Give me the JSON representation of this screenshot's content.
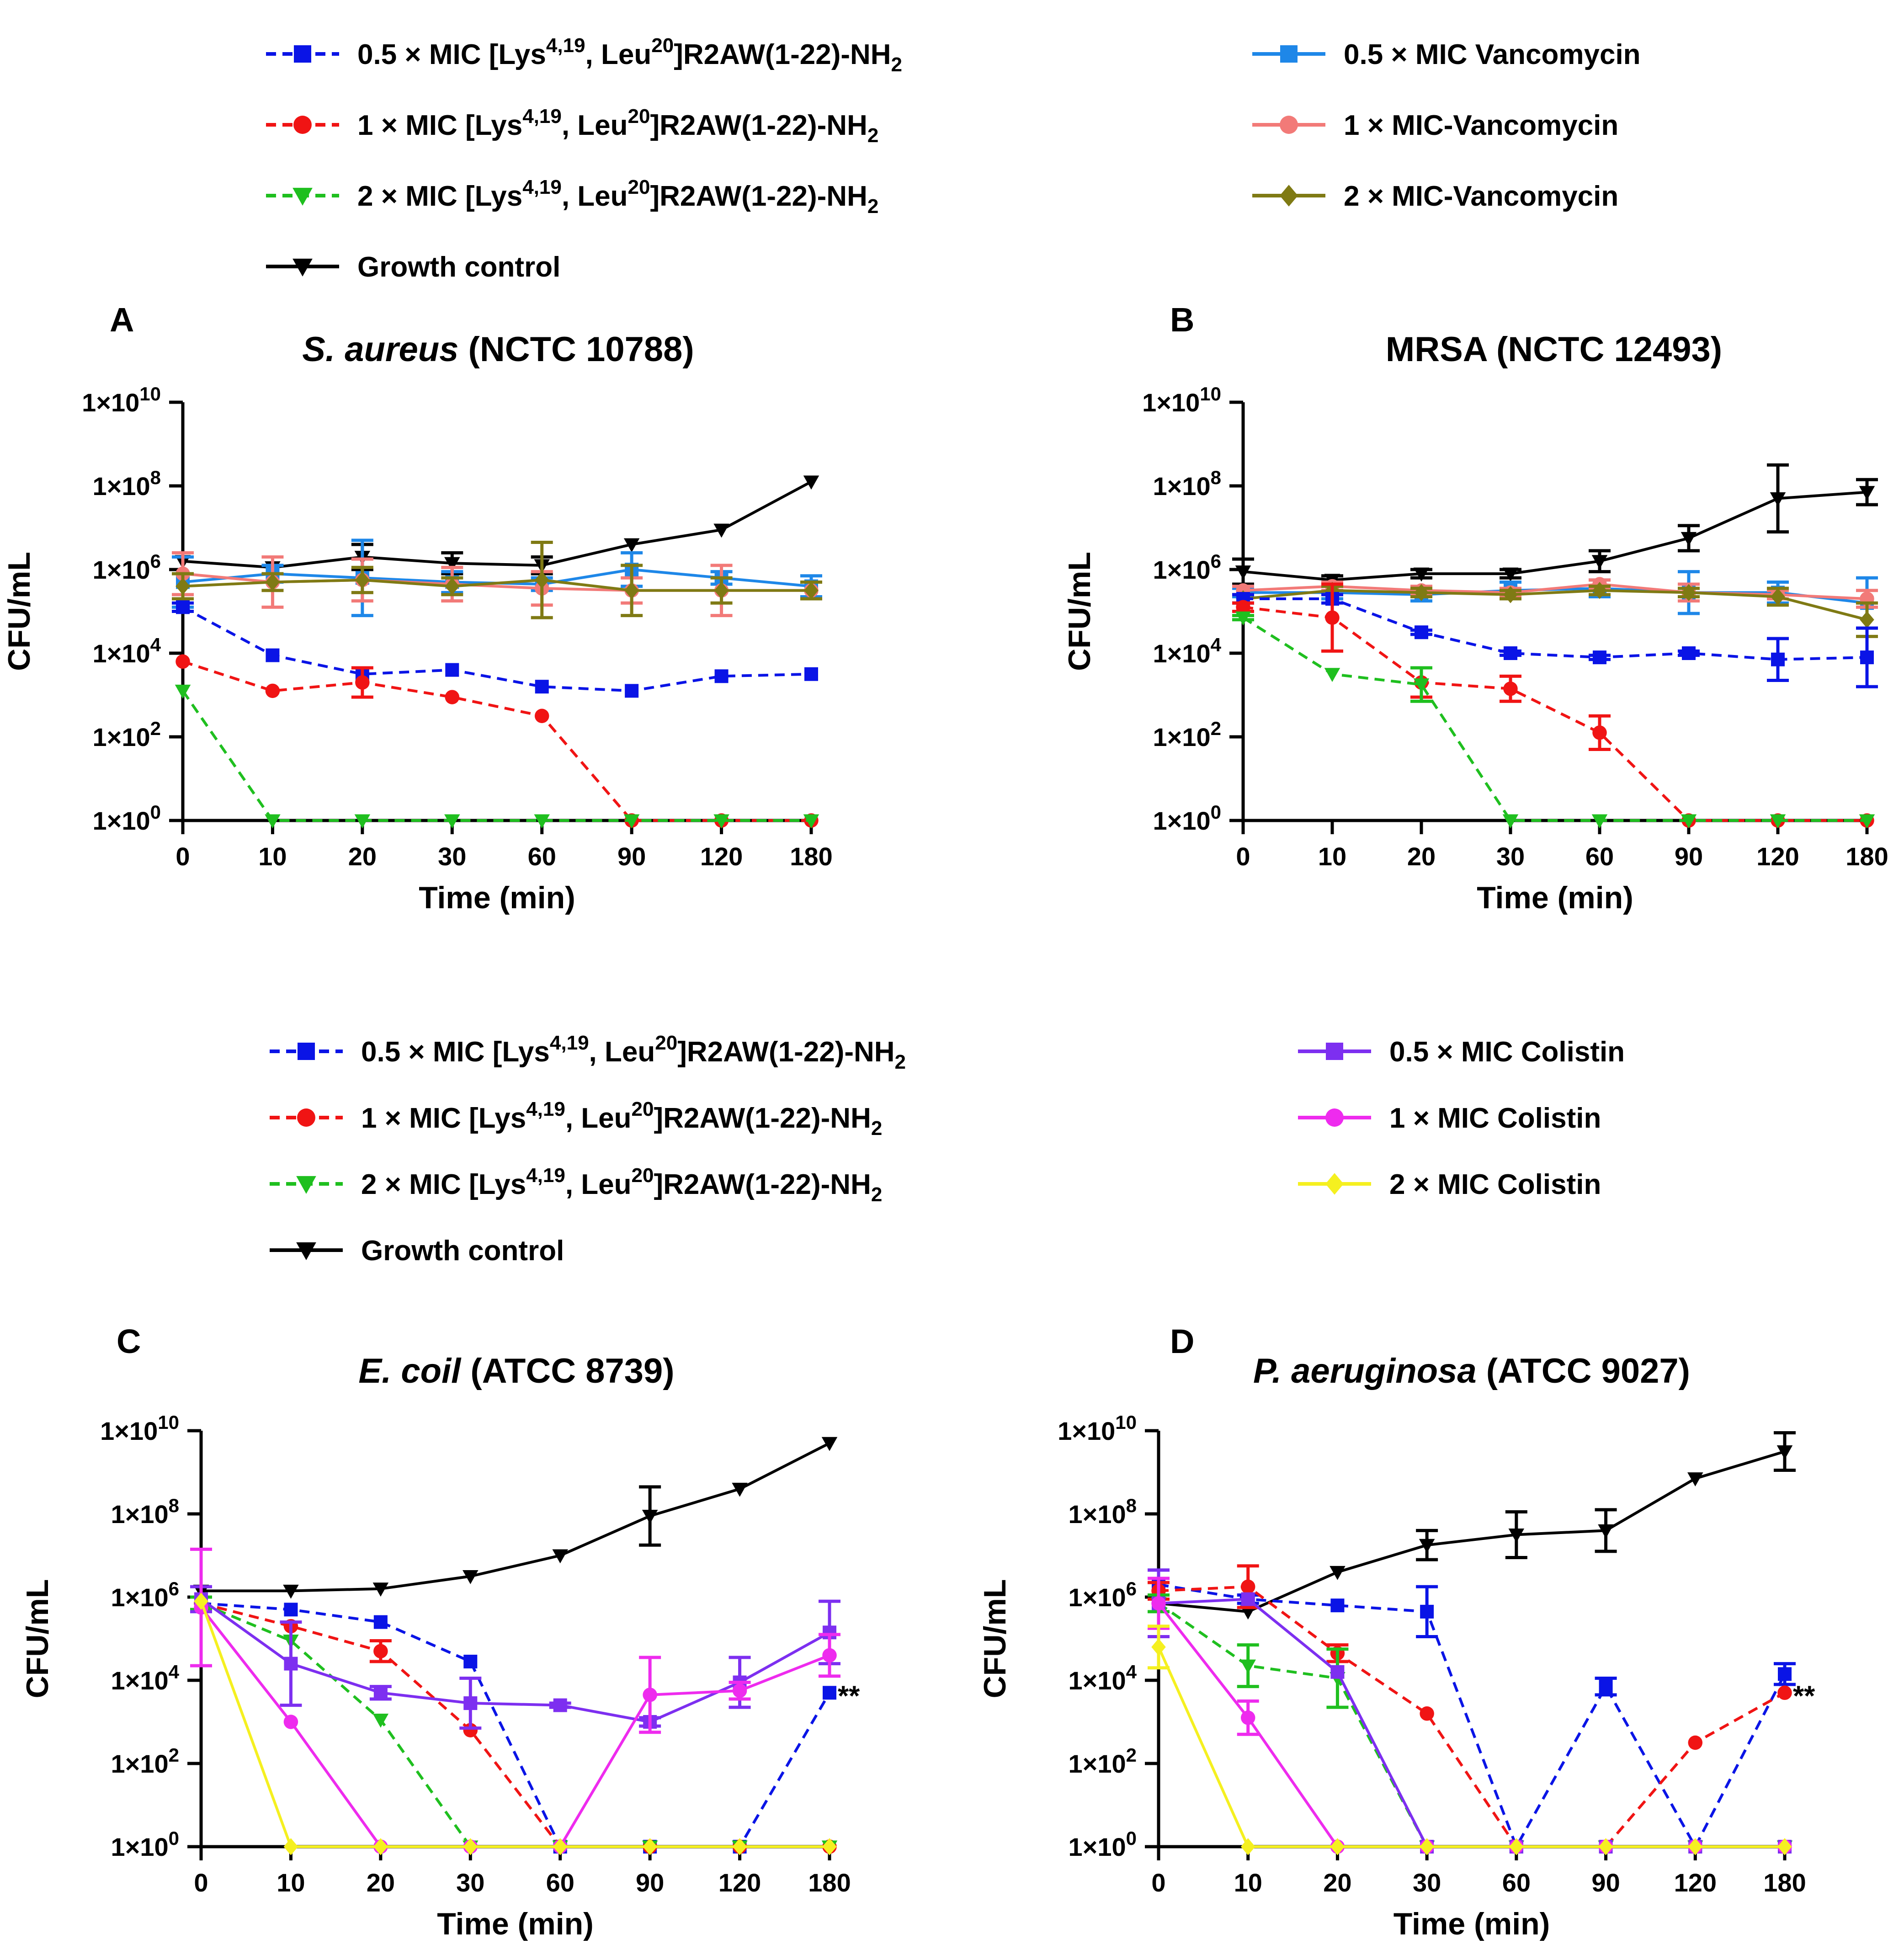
{
  "figure": {
    "legend_top": {
      "left": [
        {
          "series": "pep05",
          "pre": "0.5 × MIC [Lys",
          "sup1": "4,19",
          "mid": ", Leu",
          "sup2": "20",
          "post": "]R2AW(1-22)-NH",
          "sub": "2"
        },
        {
          "series": "pep1",
          "pre": "1 × MIC [Lys",
          "sup1": "4,19",
          "mid": ", Leu",
          "sup2": "20",
          "post": "]R2AW(1-22)-NH",
          "sub": "2"
        },
        {
          "series": "pep2",
          "pre": "2 × MIC [Lys",
          "sup1": "4,19",
          "mid": ", Leu",
          "sup2": "20",
          "post": "]R2AW(1-22)-NH",
          "sub": "2"
        },
        {
          "series": "gc",
          "pre": "Growth control"
        }
      ],
      "right": [
        {
          "series": "van05",
          "pre": "0.5 × MIC Vancomycin"
        },
        {
          "series": "van1",
          "pre": "1 × MIC-Vancomycin"
        },
        {
          "series": "van2",
          "pre": "2 × MIC-Vancomycin"
        }
      ]
    },
    "legend_bottom": {
      "left": [
        {
          "series": "pep05",
          "pre": "0.5 × MIC [Lys",
          "sup1": "4,19",
          "mid": ", Leu",
          "sup2": "20",
          "post": "]R2AW(1-22)-NH",
          "sub": "2"
        },
        {
          "series": "pep1",
          "pre": "1 × MIC [Lys",
          "sup1": "4,19",
          "mid": ", Leu",
          "sup2": "20",
          "post": "]R2AW(1-22)-NH",
          "sub": "2"
        },
        {
          "series": "pep2",
          "pre": "2 × MIC [Lys",
          "sup1": "4,19",
          "mid": ", Leu",
          "sup2": "20",
          "post": "]R2AW(1-22)-NH",
          "sub": "2"
        },
        {
          "series": "gc",
          "pre": "Growth control"
        }
      ],
      "right": [
        {
          "series": "col05",
          "pre": "0.5 × MIC Colistin"
        },
        {
          "series": "col1",
          "pre": "1 × MIC Colistin"
        },
        {
          "series": "col2",
          "pre": "2 × MIC Colistin"
        }
      ]
    },
    "styles": {
      "pep05": {
        "color": "#0a14e6",
        "marker": "square",
        "dashed": true
      },
      "pep1": {
        "color": "#f01414",
        "marker": "circle",
        "dashed": true
      },
      "pep2": {
        "color": "#1fbf1f",
        "marker": "triangle-down",
        "dashed": true
      },
      "gc": {
        "color": "#000000",
        "marker": "triangle-down",
        "dashed": false
      },
      "van05": {
        "color": "#1e87e8",
        "marker": "square",
        "dashed": false
      },
      "van1": {
        "color": "#f27a78",
        "marker": "circle",
        "dashed": false
      },
      "van2": {
        "color": "#7f7a14",
        "marker": "diamond",
        "dashed": false
      },
      "col05": {
        "color": "#7d2ff0",
        "marker": "square",
        "dashed": false
      },
      "col1": {
        "color": "#ee2bee",
        "marker": "circle",
        "dashed": false
      },
      "col2": {
        "color": "#f5f020",
        "marker": "diamond",
        "dashed": false
      }
    }
  },
  "chart_data": [
    {
      "panel": "A",
      "type": "line",
      "title_italic": "S. aureus",
      "title_rest": " (NCTC 10788)",
      "xlabel": "Time (min)",
      "ylabel": "CFU/mL",
      "y_scale": "log10",
      "ylim_log10": [
        0,
        10
      ],
      "y_ticks": [
        0,
        2,
        4,
        6,
        8,
        10
      ],
      "categories": [
        "0",
        "10",
        "20",
        "30",
        "60",
        "90",
        "120",
        "180"
      ],
      "annotation": "",
      "series": [
        {
          "key": "gc",
          "name": "Growth control",
          "log10": [
            6.2,
            6.05,
            6.3,
            6.15,
            6.1,
            6.6,
            6.95,
            8.1
          ],
          "err": [
            0,
            0,
            0.3,
            0.25,
            0.2,
            0,
            0,
            0
          ]
        },
        {
          "key": "van05",
          "name": "0.5 × MIC Vancomycin",
          "log10": [
            5.7,
            5.9,
            5.8,
            5.7,
            5.65,
            6.0,
            5.8,
            5.6
          ],
          "err": [
            0.6,
            0.2,
            0.9,
            0.25,
            0.15,
            0.4,
            0.15,
            0.25
          ]
        },
        {
          "key": "van1",
          "name": "1 × MIC-Vancomycin",
          "log10": [
            5.9,
            5.7,
            5.75,
            5.65,
            5.55,
            5.5,
            5.5,
            5.5
          ],
          "err": [
            0.5,
            0.6,
            0.5,
            0.4,
            0.4,
            0.3,
            0.6,
            0.2
          ]
        },
        {
          "key": "van2",
          "name": "2 × MIC-Vancomycin",
          "log10": [
            5.6,
            5.7,
            5.75,
            5.6,
            5.75,
            5.5,
            5.5,
            5.5
          ],
          "err": [
            0.3,
            0.2,
            0.3,
            0.2,
            0.9,
            0.6,
            0.3,
            0.2
          ]
        },
        {
          "key": "pep05",
          "name": "0.5 × MIC [Lys4,19, Leu20]R2AW(1-22)-NH2",
          "log10": [
            5.1,
            3.95,
            3.5,
            3.6,
            3.2,
            3.1,
            3.45,
            3.5
          ],
          "err": [
            0.1,
            0,
            0,
            0,
            0,
            0,
            0,
            0
          ]
        },
        {
          "key": "pep1",
          "name": "1 × MIC [Lys4,19, Leu20]R2AW(1-22)-NH2",
          "log10": [
            3.8,
            3.1,
            3.3,
            2.95,
            2.5,
            0,
            0,
            0
          ],
          "err": [
            0,
            0,
            0.35,
            0,
            0,
            0,
            0,
            0
          ]
        },
        {
          "key": "pep2",
          "name": "2 × MIC [Lys4,19, Leu20]R2AW(1-22)-NH2",
          "log10": [
            3.1,
            0,
            0,
            0,
            0,
            0,
            0,
            0
          ],
          "err": [
            0,
            0,
            0,
            0,
            0,
            0,
            0,
            0
          ]
        }
      ]
    },
    {
      "panel": "B",
      "type": "line",
      "title_italic": "",
      "title_rest": "MRSA (NCTC 12493)",
      "xlabel": "Time (min)",
      "ylabel": "CFU/mL",
      "y_scale": "log10",
      "ylim_log10": [
        0,
        10
      ],
      "y_ticks": [
        0,
        2,
        4,
        6,
        8,
        10
      ],
      "categories": [
        "0",
        "10",
        "20",
        "30",
        "60",
        "90",
        "120",
        "180"
      ],
      "annotation": "",
      "series": [
        {
          "key": "gc",
          "name": "Growth control",
          "log10": [
            5.95,
            5.75,
            5.9,
            5.9,
            6.2,
            6.75,
            7.7,
            7.85
          ],
          "err": [
            0.3,
            0.1,
            0.1,
            0.1,
            0.25,
            0.3,
            0.8,
            0.3
          ]
        },
        {
          "key": "van05",
          "name": "0.5 × MIC Vancomycin",
          "log10": [
            5.45,
            5.45,
            5.4,
            5.5,
            5.55,
            5.45,
            5.45,
            5.2
          ],
          "err": [
            0.1,
            0.15,
            0.15,
            0.2,
            0.2,
            0.5,
            0.25,
            0.6
          ]
        },
        {
          "key": "van1",
          "name": "1 × MIC-Vancomycin",
          "log10": [
            5.5,
            5.6,
            5.5,
            5.45,
            5.65,
            5.45,
            5.4,
            5.3
          ],
          "err": [
            0.1,
            0.1,
            0.1,
            0.1,
            0.1,
            0.2,
            0.1,
            0.2
          ]
        },
        {
          "key": "van2",
          "name": "2 × MIC-Vancomycin",
          "log10": [
            5.3,
            5.5,
            5.45,
            5.4,
            5.5,
            5.45,
            5.35,
            4.8
          ],
          "err": [
            0.1,
            0.1,
            0.1,
            0.1,
            0.1,
            0.1,
            0.2,
            0.4
          ]
        },
        {
          "key": "pep05",
          "name": "0.5 × MIC [Lys4,19, Leu20]R2AW(1-22)-NH2",
          "log10": [
            5.3,
            5.3,
            4.5,
            4.0,
            3.9,
            4.0,
            3.85,
            3.9
          ],
          "err": [
            0.1,
            0.1,
            0.05,
            0.05,
            0.05,
            0.05,
            0.5,
            0.7
          ]
        },
        {
          "key": "pep1",
          "name": "1 × MIC [Lys4,19, Leu20]R2AW(1-22)-NH2",
          "log10": [
            5.1,
            4.85,
            3.3,
            3.15,
            2.1,
            0,
            0,
            0
          ],
          "err": [
            0.1,
            0.8,
            0.35,
            0.3,
            0.4,
            0,
            0,
            0
          ]
        },
        {
          "key": "pep2",
          "name": "2 × MIC [Lys4,19, Leu20]R2AW(1-22)-NH2",
          "log10": [
            4.85,
            3.5,
            3.25,
            0,
            0,
            0,
            0,
            0
          ],
          "err": [
            0.05,
            0,
            0.4,
            0,
            0,
            0,
            0,
            0
          ]
        }
      ]
    },
    {
      "panel": "C",
      "type": "line",
      "title_italic": "E. coil",
      "title_rest": " (ATCC 8739)",
      "xlabel": "Time (min)",
      "ylabel": "CFU/mL",
      "y_scale": "log10",
      "ylim_log10": [
        0,
        10
      ],
      "y_ticks": [
        0,
        2,
        4,
        6,
        8,
        10
      ],
      "categories": [
        "0",
        "10",
        "20",
        "30",
        "60",
        "90",
        "120",
        "180"
      ],
      "annotation": "**",
      "series": [
        {
          "key": "gc",
          "name": "Growth control",
          "log10": [
            6.15,
            6.15,
            6.2,
            6.5,
            7.0,
            7.95,
            8.6,
            9.7
          ],
          "err": [
            0,
            0,
            0,
            0,
            0,
            0.7,
            0,
            0
          ]
        },
        {
          "key": "pep05",
          "name": "0.5 × MIC [Lys4,19, Leu20]R2AW(1-22)-NH2",
          "log10": [
            5.85,
            5.7,
            5.4,
            4.45,
            0,
            0,
            0,
            3.7
          ],
          "err": [
            0.15,
            0,
            0,
            0,
            0,
            0,
            0,
            0
          ]
        },
        {
          "key": "pep1",
          "name": "1 × MIC [Lys4,19, Leu20]R2AW(1-22)-NH2",
          "log10": [
            5.85,
            5.3,
            4.7,
            2.8,
            0,
            0,
            0,
            0
          ],
          "err": [
            0.15,
            0,
            0.25,
            0,
            0,
            0,
            0,
            0
          ]
        },
        {
          "key": "pep2",
          "name": "2 × MIC [Lys4,19, Leu20]R2AW(1-22)-NH2",
          "log10": [
            5.85,
            4.95,
            3.05,
            0,
            0,
            0,
            0,
            0
          ],
          "err": [
            0.15,
            0,
            0,
            0,
            0,
            0,
            0,
            0
          ]
        },
        {
          "key": "col05",
          "name": "0.5 × MIC Colistin",
          "log10": [
            5.95,
            4.4,
            3.7,
            3.45,
            3.4,
            3.0,
            3.95,
            5.15
          ],
          "err": [
            0.3,
            1.0,
            0.15,
            0.6,
            0.05,
            0.1,
            0.6,
            0.75
          ]
        },
        {
          "key": "col1",
          "name": "1 × MIC Colistin",
          "log10": [
            5.75,
            3.0,
            0,
            0,
            0,
            3.65,
            3.75,
            4.6
          ],
          "err": [
            1.4,
            0,
            0,
            0,
            0,
            0.9,
            0.2,
            0.5
          ]
        },
        {
          "key": "col2",
          "name": "2 × MIC Colistin",
          "log10": [
            5.9,
            0,
            0,
            0,
            0,
            0,
            0,
            0
          ],
          "err": [
            0,
            0,
            0,
            0,
            0,
            0,
            0,
            0
          ]
        }
      ]
    },
    {
      "panel": "D",
      "type": "line",
      "title_italic": "P. aeruginosa",
      "title_rest": " (ATCC 9027)",
      "xlabel": "Time (min)",
      "ylabel": "CFU/mL",
      "y_scale": "log10",
      "ylim_log10": [
        0,
        10
      ],
      "y_ticks": [
        0,
        2,
        4,
        6,
        8,
        10
      ],
      "categories": [
        "0",
        "10",
        "20",
        "30",
        "60",
        "90",
        "120",
        "180"
      ],
      "annotation": "**",
      "series": [
        {
          "key": "gc",
          "name": "Growth control",
          "log10": [
            5.85,
            5.65,
            6.6,
            7.25,
            7.5,
            7.6,
            8.85,
            9.5
          ],
          "err": [
            0,
            0,
            0,
            0.35,
            0.55,
            0.5,
            0,
            0.45
          ]
        },
        {
          "key": "pep05",
          "name": "0.5 × MIC [Lys4,19, Leu20]R2AW(1-22)-NH2",
          "log10": [
            6.3,
            5.95,
            5.8,
            5.65,
            0,
            3.85,
            0,
            4.15
          ],
          "err": [
            0.35,
            0.1,
            0,
            0.6,
            0,
            0.2,
            0,
            0.25
          ]
        },
        {
          "key": "pep1",
          "name": "1 × MIC [Lys4,19, Leu20]R2AW(1-22)-NH2",
          "log10": [
            6.15,
            6.25,
            4.65,
            3.2,
            0,
            0,
            2.5,
            3.7
          ],
          "err": [
            0.2,
            0.5,
            0.2,
            0,
            0,
            0,
            0,
            0
          ]
        },
        {
          "key": "pep2",
          "name": "2 × MIC [Lys4,19, Leu20]R2AW(1-22)-NH2",
          "log10": [
            5.85,
            4.35,
            4.05,
            0,
            0,
            0,
            0,
            0
          ],
          "err": [
            0.2,
            0.5,
            0.7,
            0,
            0,
            0,
            0,
            0
          ]
        },
        {
          "key": "col05",
          "name": "0.5 × MIC Colistin",
          "log10": [
            5.85,
            5.95,
            4.2,
            0,
            0,
            0,
            0,
            0
          ],
          "err": [
            0.8,
            0,
            0,
            0,
            0,
            0,
            0,
            0
          ]
        },
        {
          "key": "col1",
          "name": "1 × MIC Colistin",
          "log10": [
            5.85,
            3.1,
            0,
            0,
            0,
            0,
            0,
            0
          ],
          "err": [
            0.6,
            0.4,
            0,
            0,
            0,
            0,
            0,
            0
          ]
        },
        {
          "key": "col2",
          "name": "2 × MIC Colistin",
          "log10": [
            4.8,
            0,
            0,
            0,
            0,
            0,
            0,
            0
          ],
          "err": [
            0.5,
            0,
            0,
            0,
            0,
            0,
            0,
            0
          ]
        }
      ]
    }
  ]
}
